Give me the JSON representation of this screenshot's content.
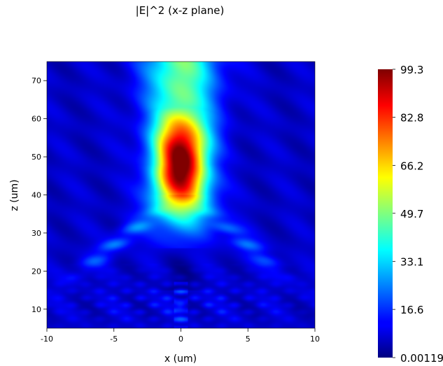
{
  "chart_data": {
    "type": "heatmap",
    "title": "|E|^2 (x-z plane)",
    "xlabel": "x (um)",
    "ylabel": "z (um)",
    "xlim": [
      -10,
      10
    ],
    "ylim": [
      5,
      75
    ],
    "x_ticks": [
      -10,
      -5,
      0,
      5,
      10
    ],
    "x_tick_labels": [
      "-10",
      "-5",
      "0",
      "5",
      "10"
    ],
    "y_ticks": [
      10,
      20,
      30,
      40,
      50,
      60,
      70
    ],
    "y_tick_labels": [
      "10",
      "20",
      "30",
      "40",
      "50",
      "60",
      "70"
    ],
    "colormap": "jet",
    "colorbar": {
      "min": 0.00119,
      "max": 99.3,
      "ticks": [
        0.00119,
        16.6,
        33.1,
        49.7,
        66.2,
        82.8,
        99.3
      ],
      "tick_labels": [
        "0.00119",
        "16.6",
        "33.1",
        "49.7",
        "66.2",
        "82.8",
        "99.3"
      ]
    },
    "focus": {
      "x": 0,
      "z": 48,
      "peak_value": 99.3
    },
    "grid": false
  }
}
